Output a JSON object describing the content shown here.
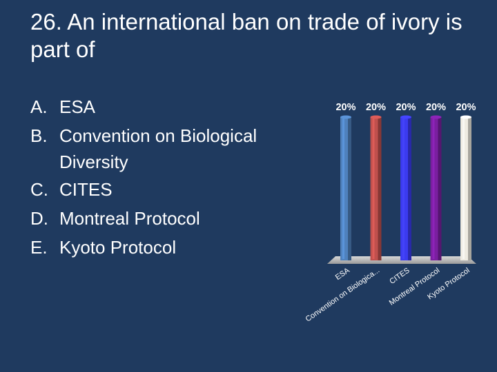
{
  "slide": {
    "title": "26.  An international ban on trade of ivory is part of",
    "options": [
      {
        "letter": "A.",
        "text": "ESA"
      },
      {
        "letter": "B.",
        "text": "Convention on Biological Diversity"
      },
      {
        "letter": "C.",
        "text": "CITES"
      },
      {
        "letter": "D.",
        "text": "Montreal Protocol"
      },
      {
        "letter": "E.",
        "text": "Kyoto Protocol"
      }
    ]
  },
  "chart_data": {
    "type": "bar",
    "categories": [
      "ESA",
      "Convention on Biologica...",
      "CITES",
      "Montreal Protocol",
      "Kyoto Protocol"
    ],
    "values": [
      20,
      20,
      20,
      20,
      20
    ],
    "data_labels": [
      "20%",
      "20%",
      "20%",
      "20%",
      "20%"
    ],
    "colors": [
      "#4f81bd",
      "#c0504d",
      "#3b3bf0",
      "#7a1fa0",
      "#eeebe2"
    ],
    "ylim": [
      0,
      20
    ],
    "grid": false,
    "legend": "none"
  }
}
